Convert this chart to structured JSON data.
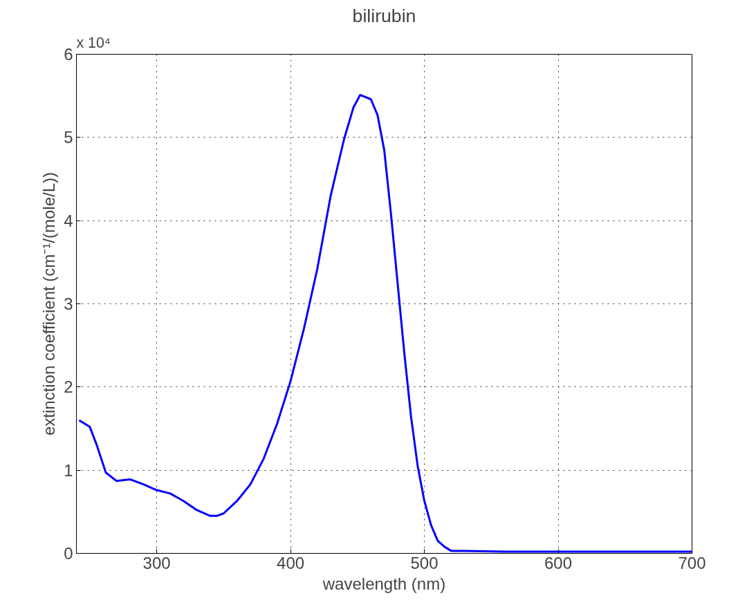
{
  "chart_data": {
    "type": "line",
    "title": "bilirubin",
    "xlabel": "wavelength (nm)",
    "ylabel": "extinction coefficient (cm⁻¹/(mole/L))",
    "annotations": [
      "x 10⁴"
    ],
    "x": [
      242,
      250,
      255,
      262,
      270,
      280,
      290,
      300,
      310,
      320,
      330,
      340,
      345,
      350,
      360,
      370,
      380,
      390,
      400,
      410,
      420,
      430,
      440,
      447,
      452,
      460,
      465,
      470,
      475,
      480,
      485,
      490,
      495,
      500,
      505,
      510,
      515,
      520,
      530,
      560,
      600,
      650,
      700
    ],
    "series": [
      {
        "color": "#0000ff",
        "values": [
          1.6,
          1.52,
          1.31,
          0.97,
          0.87,
          0.89,
          0.83,
          0.76,
          0.72,
          0.63,
          0.52,
          0.45,
          0.45,
          0.48,
          0.63,
          0.83,
          1.14,
          1.56,
          2.07,
          2.7,
          3.42,
          4.3,
          4.98,
          5.36,
          5.51,
          5.46,
          5.27,
          4.85,
          4.09,
          3.25,
          2.41,
          1.65,
          1.05,
          0.63,
          0.34,
          0.15,
          0.08,
          0.03,
          0.03,
          0.02,
          0.02,
          0.02,
          0.02
        ]
      }
    ],
    "xlim": [
      240,
      700
    ],
    "ylim": [
      0,
      6
    ],
    "xticks": [
      300,
      400,
      500,
      600,
      700
    ],
    "yticks": [
      0,
      1,
      2,
      3,
      4,
      5,
      6
    ],
    "grid": true,
    "line_style": "solid",
    "marker": "none"
  }
}
